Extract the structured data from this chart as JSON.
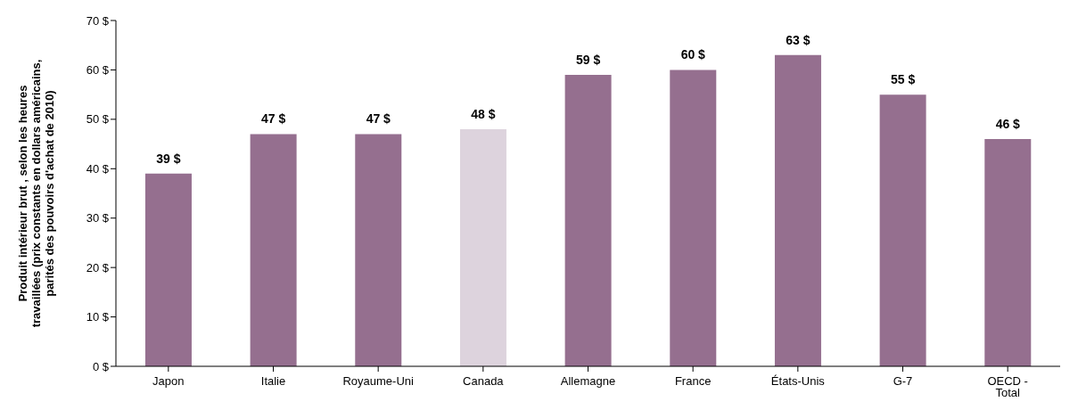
{
  "chart_data": {
    "type": "bar",
    "ylabel": "Produit intérieur brut , selon les heures travaillées (prix constants en dollars américains, parités des pouvoirs d'achat de 2010)",
    "categories": [
      "Japon",
      "Italie",
      "Royaume-Uni",
      "Canada",
      "Allemagne",
      "France",
      "États-Unis",
      "G-7",
      "OECD - Total"
    ],
    "values": [
      39,
      47,
      47,
      48,
      59,
      60,
      63,
      55,
      46
    ],
    "colors": [
      "#956f8f",
      "#956f8f",
      "#956f8f",
      "#ddd3dd",
      "#956f8f",
      "#956f8f",
      "#956f8f",
      "#956f8f",
      "#956f8f"
    ],
    "value_labels": [
      "39 $",
      "47 $",
      "47 $",
      "48 $",
      "59 $",
      "60 $",
      "63 $",
      "55 $",
      "46 $"
    ],
    "ylim": [
      0,
      70
    ],
    "yticks": [
      {
        "value": 0,
        "label": "0 $"
      },
      {
        "value": 10,
        "label": "10 $"
      },
      {
        "value": 20,
        "label": "20 $"
      },
      {
        "value": 30,
        "label": "30 $"
      },
      {
        "value": 40,
        "label": "40 $"
      },
      {
        "value": 50,
        "label": "50 $"
      },
      {
        "value": 60,
        "label": "60 $"
      },
      {
        "value": 70,
        "label": "70 $"
      }
    ],
    "grid": false,
    "legend": false
  }
}
